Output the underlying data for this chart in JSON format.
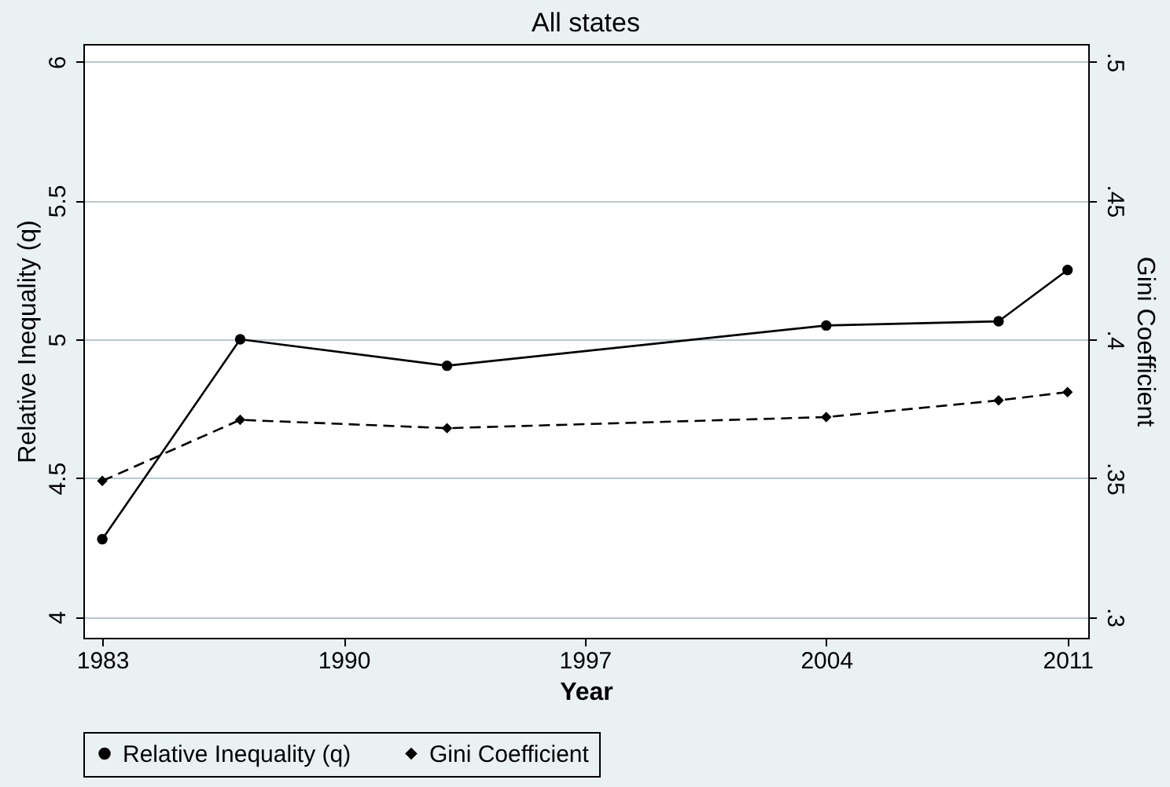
{
  "chart_data": {
    "type": "line",
    "title": "All states",
    "xlabel": "Year",
    "ylabel": "Relative Inequality (q)",
    "y2label": "Gini Coefficient",
    "x": [
      1983,
      1987,
      1993,
      2004,
      2009,
      2011
    ],
    "series": [
      {
        "name": "Relative Inequality (q)",
        "color": "#000000",
        "marker": "circle",
        "line_style": "solid",
        "values": [
          4.28,
          5.0,
          4.905,
          5.05,
          5.065,
          5.25
        ]
      },
      {
        "name": "Gini Coefficient",
        "color": "#000000",
        "marker": "diamond",
        "line_style": "dashed",
        "axis": "y2",
        "values": [
          0.349,
          0.371,
          0.368,
          0.372,
          0.378,
          0.381
        ]
      }
    ],
    "xlim": [
      1982.45,
      2011.6
    ],
    "xticks": [
      1983,
      1990,
      1997,
      2004,
      2011
    ],
    "ylim": [
      3.925,
      6.064
    ],
    "yticks": [
      4,
      4.5,
      5,
      5.5,
      6
    ],
    "y2lim": [
      0.2925,
      0.5064
    ],
    "y2ticks": [
      {
        "value": 0.3,
        "label": ".3"
      },
      {
        "value": 0.35,
        "label": ".35"
      },
      {
        "value": 0.4,
        "label": ".4"
      },
      {
        "value": 0.45,
        "label": ".45"
      },
      {
        "value": 0.5,
        "label": ".5"
      }
    ],
    "grid": "y",
    "legend": "bottom"
  }
}
